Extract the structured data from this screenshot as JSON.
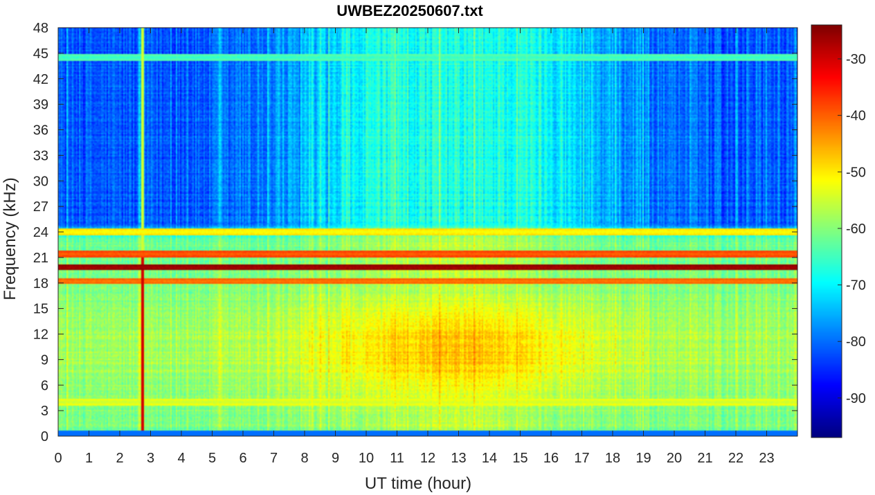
{
  "chart_data": {
    "type": "heatmap",
    "title": "UWBEZ20250607.txt",
    "xlabel": "UT time (hour)",
    "ylabel": "Frequency (kHz)",
    "xlim": [
      0,
      24
    ],
    "ylim": [
      0,
      48
    ],
    "xticks": [
      "0",
      "1",
      "2",
      "3",
      "4",
      "5",
      "6",
      "7",
      "8",
      "9",
      "10",
      "11",
      "12",
      "13",
      "14",
      "15",
      "16",
      "17",
      "18",
      "19",
      "20",
      "21",
      "22",
      "23"
    ],
    "yticks": [
      "0",
      "3",
      "6",
      "9",
      "12",
      "15",
      "18",
      "21",
      "24",
      "27",
      "30",
      "33",
      "36",
      "39",
      "42",
      "45",
      "48"
    ],
    "colorbar": {
      "colormap": "jet",
      "range": [
        -97,
        -24
      ],
      "ticks": [
        "-30",
        "-40",
        "-50",
        "-60",
        "-70",
        "-80",
        "-90"
      ],
      "tick_values": [
        -30,
        -40,
        -50,
        -60,
        -70,
        -80,
        -90
      ]
    },
    "features": {
      "background_level_high_freq_night": -82,
      "background_level_high_freq_day": -68,
      "broadband_peak_band_khz": [
        6,
        14
      ],
      "broadband_peak_level_day": -47,
      "strong_lines": [
        {
          "freq_khz": 19.8,
          "level": -27,
          "t_start": 0,
          "t_end": 24
        },
        {
          "freq_khz": 21.4,
          "level": -40,
          "t_start": 0,
          "t_end": 24
        },
        {
          "freq_khz": 18.2,
          "level": -42,
          "t_start": 0,
          "t_end": 24
        },
        {
          "freq_khz": 24.0,
          "level": -52,
          "t_start": 0,
          "t_end": 24
        },
        {
          "freq_khz": 44.5,
          "level": -66,
          "t_start": 0,
          "t_end": 24
        },
        {
          "freq_khz": 4.0,
          "level": -55,
          "t_start": 0,
          "t_end": 24
        }
      ],
      "transient_events": [
        {
          "time_hour": 2.75,
          "freq_range_khz": [
            0,
            48
          ],
          "level": -55
        },
        {
          "time_hour": 2.75,
          "freq_range_khz": [
            0.5,
            21
          ],
          "level": -30
        }
      ]
    }
  }
}
